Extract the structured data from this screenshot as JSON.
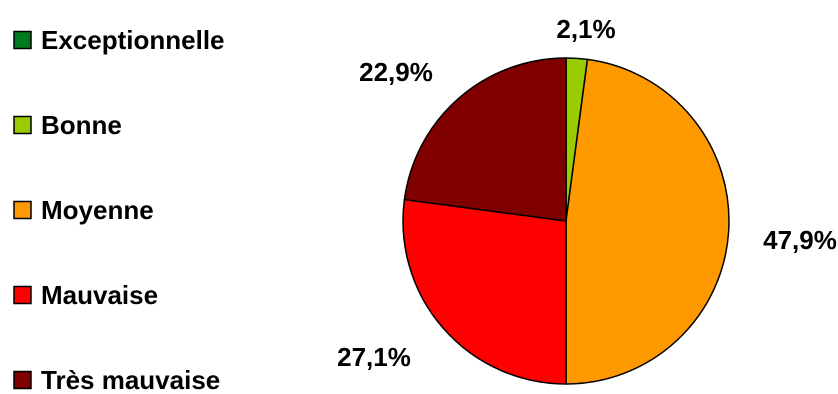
{
  "chart_data": {
    "type": "pie",
    "title": "",
    "legend_position": "left",
    "categories": [
      "Exceptionnelle",
      "Bonne",
      "Moyenne",
      "Mauvaise",
      "Très mauvaise"
    ],
    "values": [
      0,
      2.1,
      47.9,
      27.1,
      22.9
    ],
    "data_labels": [
      "",
      "2,1%",
      "47,9%",
      "27,1%",
      "22,9%"
    ],
    "colors": [
      "#007A1F",
      "#99CC00",
      "#FF9900",
      "#FF0000",
      "#800000"
    ],
    "start_angle": "12 o'clock",
    "direction": "clockwise"
  }
}
